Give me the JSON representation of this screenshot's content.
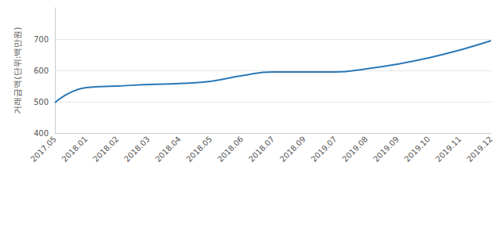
{
  "chart_data": {
    "type": "line",
    "y_label": "거래금액(단위:백만원)",
    "categories": [
      "2017.05",
      "2018.01",
      "2018.02",
      "2018.03",
      "2018.04",
      "2018.05",
      "2018.06",
      "2018.07",
      "2018.09",
      "2019.07",
      "2019.08",
      "2019.09",
      "2019.10",
      "2019.11",
      "2019.12"
    ],
    "values": [
      497,
      545,
      550,
      555,
      558,
      565,
      583,
      595,
      595,
      595,
      605,
      620,
      640,
      665,
      695
    ],
    "color": "#2b78b6",
    "line_style": "smooth",
    "ylim": [
      400,
      800
    ],
    "yticks": [
      400,
      500,
      600,
      700
    ],
    "grid": true
  }
}
